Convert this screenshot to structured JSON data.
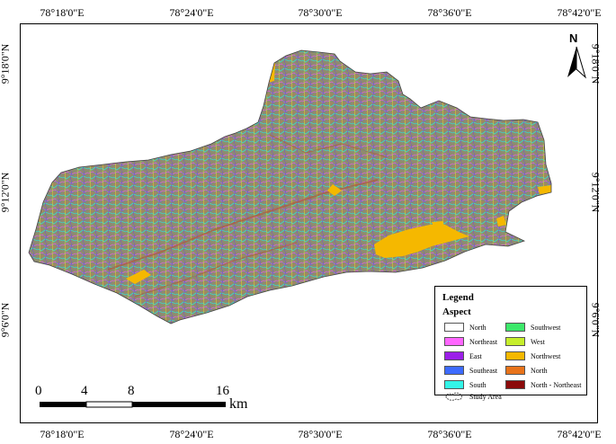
{
  "lon_labels": [
    "78°18'0\"E",
    "78°24'0\"E",
    "78°30'0\"E",
    "78°36'0\"E",
    "78°42'0\"E"
  ],
  "lat_labels": [
    "9°18'0\"N",
    "9°12'0\"N",
    "9°6'0\"N"
  ],
  "legend": {
    "title": "Legend",
    "subtitle": "Aspect",
    "items": [
      {
        "label": "North",
        "color": "#ffffff"
      },
      {
        "label": "Northeast",
        "color": "#ff66ff"
      },
      {
        "label": "East",
        "color": "#9b1fe8"
      },
      {
        "label": "Southeast",
        "color": "#3d6bff"
      },
      {
        "label": "South",
        "color": "#33f5e8"
      },
      {
        "label": "Southwest",
        "color": "#3ce86a"
      },
      {
        "label": "West",
        "color": "#c6ee2c"
      },
      {
        "label": "Northwest",
        "color": "#f5b800"
      },
      {
        "label": "North",
        "color": "#e8731a"
      },
      {
        "label": "North - Northeast",
        "color": "#8b0a0a"
      }
    ],
    "study_area_label": "Study Area"
  },
  "scalebar": {
    "ticks": [
      "0",
      "4",
      "8",
      "16"
    ],
    "unit": "km"
  },
  "north_arrow": {
    "label": "N",
    "icon": "north-arrow-icon"
  },
  "map_texture_color": "#8d8a6c"
}
